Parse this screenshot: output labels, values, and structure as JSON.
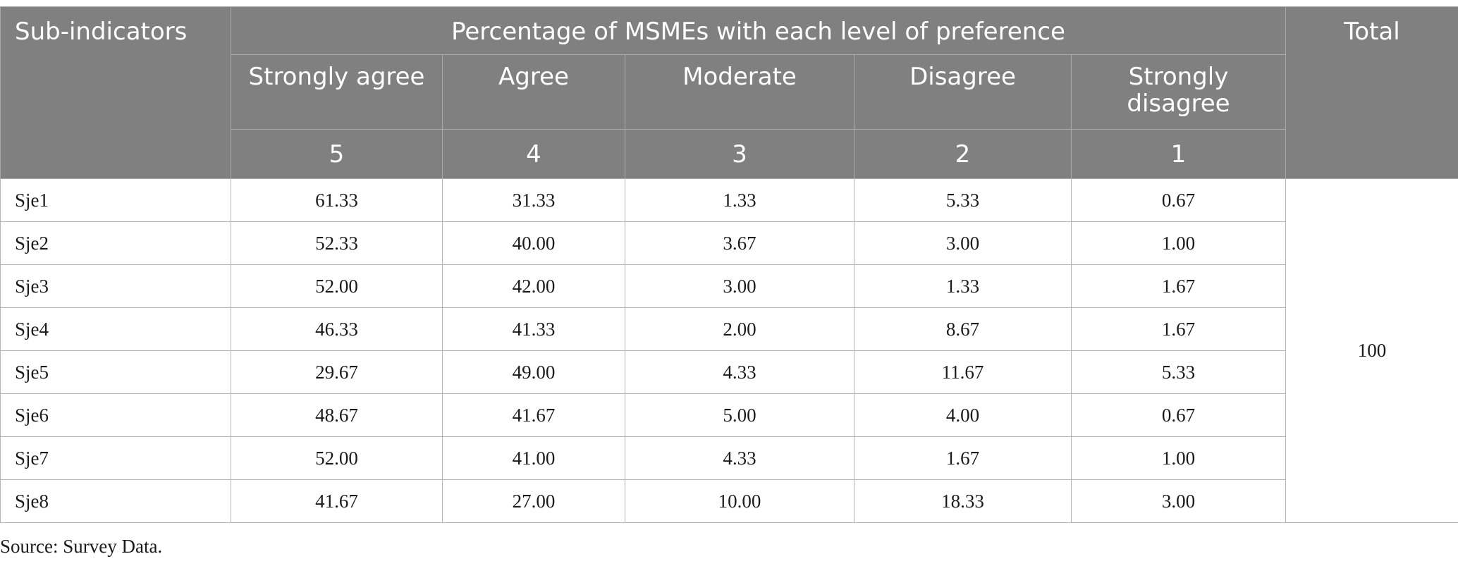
{
  "table": {
    "header": {
      "sub_indicators": "Sub-indicators",
      "group_title": "Percentage of MSMEs with each level of preference",
      "total": "Total",
      "levels": [
        "Strongly agree",
        "Agree",
        "Moderate",
        "Disagree",
        "Strongly disagree"
      ],
      "scores": [
        "5",
        "4",
        "3",
        "2",
        "1"
      ]
    },
    "rows": [
      {
        "label": "Sje1",
        "values": [
          "61.33",
          "31.33",
          "1.33",
          "5.33",
          "0.67"
        ]
      },
      {
        "label": "Sje2",
        "values": [
          "52.33",
          "40.00",
          "3.67",
          "3.00",
          "1.00"
        ]
      },
      {
        "label": "Sje3",
        "values": [
          "52.00",
          "42.00",
          "3.00",
          "1.33",
          "1.67"
        ]
      },
      {
        "label": "Sje4",
        "values": [
          "46.33",
          "41.33",
          "2.00",
          "8.67",
          "1.67"
        ]
      },
      {
        "label": "Sje5",
        "values": [
          "29.67",
          "49.00",
          "4.33",
          "11.67",
          "5.33"
        ]
      },
      {
        "label": "Sje6",
        "values": [
          "48.67",
          "41.67",
          "5.00",
          "4.00",
          "0.67"
        ]
      },
      {
        "label": "Sje7",
        "values": [
          "52.00",
          "41.00",
          "4.33",
          "1.67",
          "1.00"
        ]
      },
      {
        "label": "Sje8",
        "values": [
          "41.67",
          "27.00",
          "10.00",
          "18.33",
          "3.00"
        ]
      }
    ],
    "total_value": "100"
  },
  "source_note": "Source: Survey Data."
}
